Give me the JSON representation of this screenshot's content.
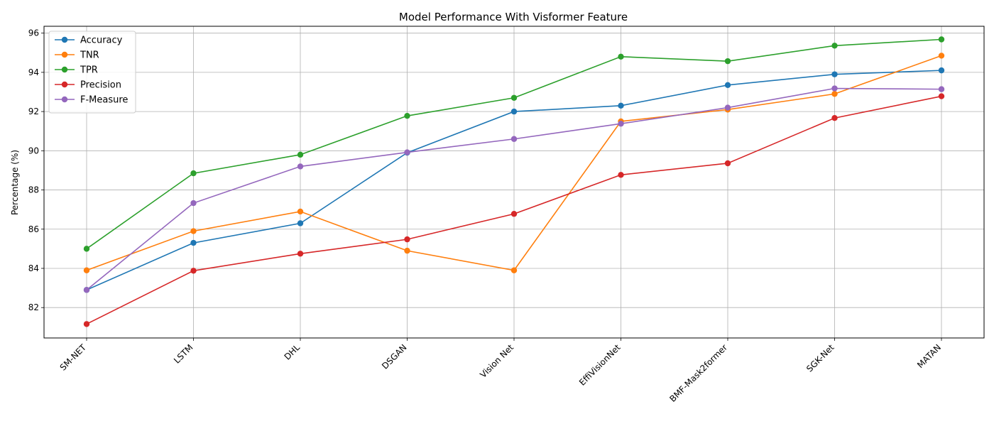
{
  "chart_data": {
    "type": "line",
    "title": "Model Performance With Visformer Feature",
    "xlabel": "",
    "ylabel": "Percentage (%)",
    "categories": [
      "SM-NET",
      "LSTM",
      "DHL",
      "DSGAN",
      "Vision Net",
      "EffiVisionNet",
      "BMF-Mask2former",
      "SGK-Net",
      "MATAN"
    ],
    "ylim": [
      80.45,
      96.35
    ],
    "yticks": [
      82,
      84,
      86,
      88,
      90,
      92,
      94,
      96
    ],
    "grid": true,
    "legend_position": "upper-left",
    "series": [
      {
        "name": "Accuracy",
        "color": "#1f77b4",
        "values": [
          82.9,
          85.3,
          86.3,
          89.9,
          92.0,
          92.3,
          93.35,
          93.9,
          94.1
        ]
      },
      {
        "name": "TNR",
        "color": "#ff7f0e",
        "values": [
          83.9,
          85.9,
          86.9,
          84.9,
          83.9,
          91.5,
          92.1,
          92.9,
          94.85
        ]
      },
      {
        "name": "TPR",
        "color": "#2ca02c",
        "values": [
          85.0,
          88.85,
          89.8,
          91.78,
          92.7,
          94.8,
          94.57,
          95.36,
          95.68
        ]
      },
      {
        "name": "Precision",
        "color": "#d62728",
        "values": [
          81.16,
          83.88,
          84.75,
          85.48,
          86.78,
          88.77,
          89.36,
          91.67,
          92.78
        ]
      },
      {
        "name": "F-Measure",
        "color": "#9467bd",
        "values": [
          82.9,
          87.33,
          89.2,
          89.92,
          90.6,
          91.38,
          92.2,
          93.18,
          93.14
        ]
      }
    ]
  }
}
